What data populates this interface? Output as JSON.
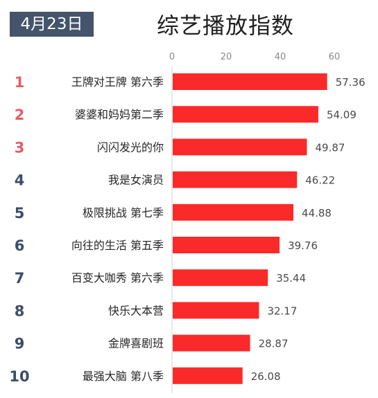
{
  "header": {
    "date": "4月23日",
    "title": "综艺播放指数"
  },
  "colors": {
    "bar": "#fa2a2a",
    "badge_bg": "#44546a",
    "rank_top3": "#e45d65",
    "rank_rest": "#3b4d6b"
  },
  "chart_data": {
    "type": "bar",
    "orientation": "horizontal",
    "title": "综艺播放指数",
    "xaxis_position": "top",
    "xlim": [
      0,
      60
    ],
    "xticks": [
      0,
      20,
      40,
      60
    ],
    "grid": false,
    "categories": [
      "王牌对王牌 第六季",
      "婆婆和妈妈第二季",
      "闪闪发光的你",
      "我是女演员",
      "极限挑战 第七季",
      "向往的生活 第五季",
      "百变大咖秀 第六季",
      "快乐大本营",
      "金牌喜剧班",
      "最强大脑 第八季"
    ],
    "ranks": [
      "1",
      "2",
      "3",
      "4",
      "5",
      "6",
      "7",
      "8",
      "9",
      "10"
    ],
    "values": [
      57.36,
      54.09,
      49.87,
      46.22,
      44.88,
      39.76,
      35.44,
      32.17,
      28.87,
      26.08
    ]
  }
}
